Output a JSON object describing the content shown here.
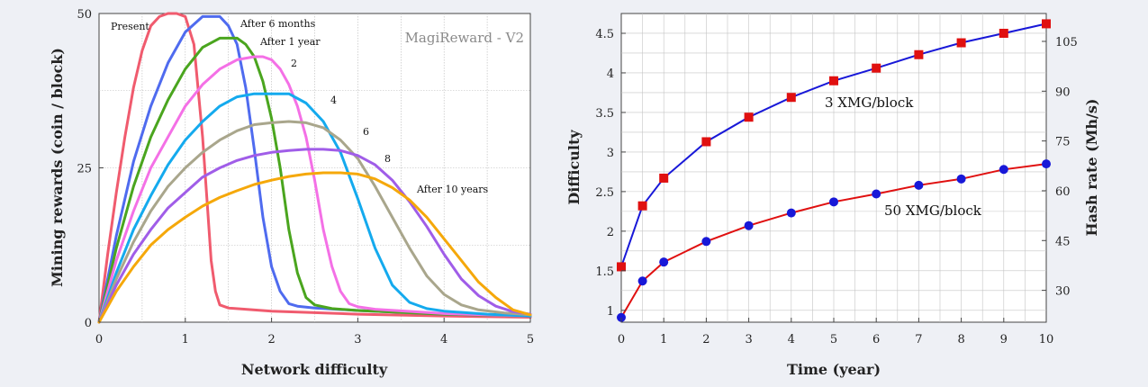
{
  "background": "#eef0f5",
  "chart_data": [
    {
      "type": "line",
      "title": "MagiReward - V2",
      "xlabel": "Network difficulty",
      "ylabel": "Mining rewards (coin / block)",
      "xlim": [
        0,
        5
      ],
      "ylim": [
        0,
        50
      ],
      "xticks": [
        0,
        1,
        2,
        3,
        4,
        5
      ],
      "yticks": [
        0,
        25,
        50
      ],
      "grid": true,
      "series": [
        {
          "name": "Present",
          "color": "#f05b6e",
          "x": [
            0,
            0.1,
            0.2,
            0.3,
            0.4,
            0.5,
            0.6,
            0.7,
            0.8,
            0.9,
            1.0,
            1.1,
            1.2,
            1.25,
            1.3,
            1.35,
            1.4,
            1.5,
            2,
            3,
            4,
            5
          ],
          "y": [
            0,
            11,
            21,
            30,
            38,
            44,
            48,
            49.5,
            50,
            50,
            49.5,
            45,
            30,
            20,
            10,
            5,
            2.8,
            2.3,
            1.8,
            1.3,
            1.0,
            0.8
          ]
        },
        {
          "name": "After 6 months",
          "color": "#4f6bef",
          "x": [
            0,
            0.2,
            0.4,
            0.6,
            0.8,
            1.0,
            1.2,
            1.4,
            1.5,
            1.6,
            1.7,
            1.8,
            1.9,
            2.0,
            2.1,
            2.2,
            2.3,
            2.5,
            3,
            4,
            5
          ],
          "y": [
            0,
            14,
            26,
            35,
            42,
            47,
            49.5,
            49.5,
            48,
            45,
            38,
            28,
            17,
            9,
            5,
            3,
            2.6,
            2.3,
            1.9,
            1.3,
            1.0
          ]
        },
        {
          "name": "After 1 year",
          "color": "#4aa51e",
          "x": [
            0,
            0.2,
            0.4,
            0.6,
            0.8,
            1.0,
            1.2,
            1.4,
            1.6,
            1.7,
            1.8,
            1.9,
            2.0,
            2.1,
            2.2,
            2.3,
            2.4,
            2.5,
            2.7,
            3,
            4,
            5
          ],
          "y": [
            0,
            12,
            22,
            30,
            36,
            41,
            44.5,
            46,
            46,
            45,
            43,
            39,
            33,
            25,
            15,
            8,
            4,
            2.8,
            2.2,
            1.9,
            1.3,
            1.0
          ]
        },
        {
          "name": "2",
          "color": "#f470e6",
          "x": [
            0,
            0.2,
            0.4,
            0.6,
            0.8,
            1.0,
            1.2,
            1.4,
            1.6,
            1.8,
            1.9,
            2.0,
            2.1,
            2.2,
            2.3,
            2.4,
            2.5,
            2.6,
            2.7,
            2.8,
            2.9,
            3.0,
            3.2,
            4,
            5
          ],
          "y": [
            0,
            10,
            18,
            25,
            30,
            35,
            38.5,
            41,
            42.5,
            43,
            43,
            42.5,
            41,
            38.5,
            35,
            30,
            23,
            15,
            9,
            5,
            3,
            2.5,
            2.1,
            1.4,
            1.0
          ]
        },
        {
          "name": "4",
          "color": "#14aaee",
          "x": [
            0,
            0.2,
            0.4,
            0.6,
            0.8,
            1.0,
            1.2,
            1.4,
            1.6,
            1.8,
            2.0,
            2.2,
            2.4,
            2.6,
            2.8,
            3.0,
            3.2,
            3.4,
            3.6,
            3.8,
            4,
            4.5,
            5
          ],
          "y": [
            0,
            8,
            15,
            20.5,
            25.5,
            29.5,
            32.5,
            35,
            36.5,
            37,
            37,
            37,
            35.5,
            32.5,
            27.5,
            20,
            12,
            6,
            3.2,
            2.2,
            1.8,
            1.3,
            1.0
          ]
        },
        {
          "name": "6",
          "color": "#a9a68c",
          "x": [
            0,
            0.2,
            0.4,
            0.6,
            0.8,
            1.0,
            1.2,
            1.4,
            1.6,
            1.8,
            2.0,
            2.2,
            2.4,
            2.6,
            2.8,
            3.0,
            3.2,
            3.4,
            3.6,
            3.8,
            4.0,
            4.2,
            4.4,
            4.7,
            5
          ],
          "y": [
            0,
            7,
            13,
            18,
            22,
            25,
            27.5,
            29.5,
            31,
            32,
            32.3,
            32.5,
            32.3,
            31.5,
            29.5,
            26.5,
            22,
            17,
            12,
            7.5,
            4.5,
            2.8,
            2.0,
            1.5,
            1.2
          ]
        },
        {
          "name": "8",
          "color": "#a05de8",
          "x": [
            0,
            0.2,
            0.4,
            0.6,
            0.8,
            1.0,
            1.2,
            1.4,
            1.6,
            1.8,
            2.0,
            2.2,
            2.4,
            2.6,
            2.8,
            3.0,
            3.2,
            3.4,
            3.6,
            3.8,
            4.0,
            4.2,
            4.4,
            4.6,
            4.8,
            5
          ],
          "y": [
            0,
            6,
            11,
            15,
            18.5,
            21,
            23.5,
            25,
            26.2,
            27,
            27.5,
            27.8,
            28,
            28,
            27.8,
            27,
            25.5,
            23,
            19.5,
            15.5,
            11,
            7,
            4.3,
            2.6,
            1.7,
            1.3
          ]
        },
        {
          "name": "After 10 years",
          "color": "#f5a80a",
          "x": [
            0,
            0.2,
            0.4,
            0.6,
            0.8,
            1.0,
            1.2,
            1.4,
            1.6,
            1.8,
            2.0,
            2.2,
            2.4,
            2.6,
            2.8,
            3.0,
            3.2,
            3.4,
            3.6,
            3.8,
            4.0,
            4.2,
            4.4,
            4.6,
            4.8,
            5
          ],
          "y": [
            0,
            5,
            9,
            12.5,
            15,
            17,
            18.8,
            20.2,
            21.3,
            22.3,
            23,
            23.6,
            24,
            24.2,
            24.2,
            24,
            23.2,
            21.8,
            19.8,
            17,
            13.5,
            10,
            6.5,
            4,
            2,
            1.2
          ]
        }
      ]
    },
    {
      "type": "line",
      "xlabel": "Time (year)",
      "ylabel": "Difficulty",
      "ylabel_right": "Hash rate (Mh/s)",
      "xlim": [
        0,
        10
      ],
      "ylim": [
        0.85,
        4.75
      ],
      "xticks": [
        0,
        1,
        2,
        3,
        4,
        5,
        6,
        7,
        8,
        9,
        10
      ],
      "yticks": [
        "1",
        "1.5",
        "2",
        "2.5",
        "3",
        "3.5",
        "4",
        "4.5"
      ],
      "yticks_right": [
        "30",
        "45",
        "60",
        "75",
        "90",
        "105"
      ],
      "ylim_right": [
        20.4,
        113.4
      ],
      "grid": true,
      "series": [
        {
          "name": "3 XMG/block",
          "color": "#1818d8",
          "marker": "square",
          "marker_color": "#e01010",
          "x": [
            0,
            0.5,
            1,
            2,
            3,
            4,
            5,
            6,
            7,
            8,
            9,
            10
          ],
          "y": [
            1.55,
            2.32,
            2.67,
            3.13,
            3.44,
            3.69,
            3.9,
            4.06,
            4.23,
            4.38,
            4.5,
            4.62
          ]
        },
        {
          "name": "50 XMG/block",
          "color": "#e01010",
          "marker": "circle",
          "marker_color": "#1818d8",
          "x": [
            0,
            0.5,
            1,
            2,
            3,
            4,
            5,
            6,
            7,
            8,
            9,
            10
          ],
          "y": [
            0.91,
            1.37,
            1.61,
            1.87,
            2.07,
            2.23,
            2.37,
            2.47,
            2.58,
            2.66,
            2.78,
            2.85
          ]
        }
      ]
    }
  ]
}
